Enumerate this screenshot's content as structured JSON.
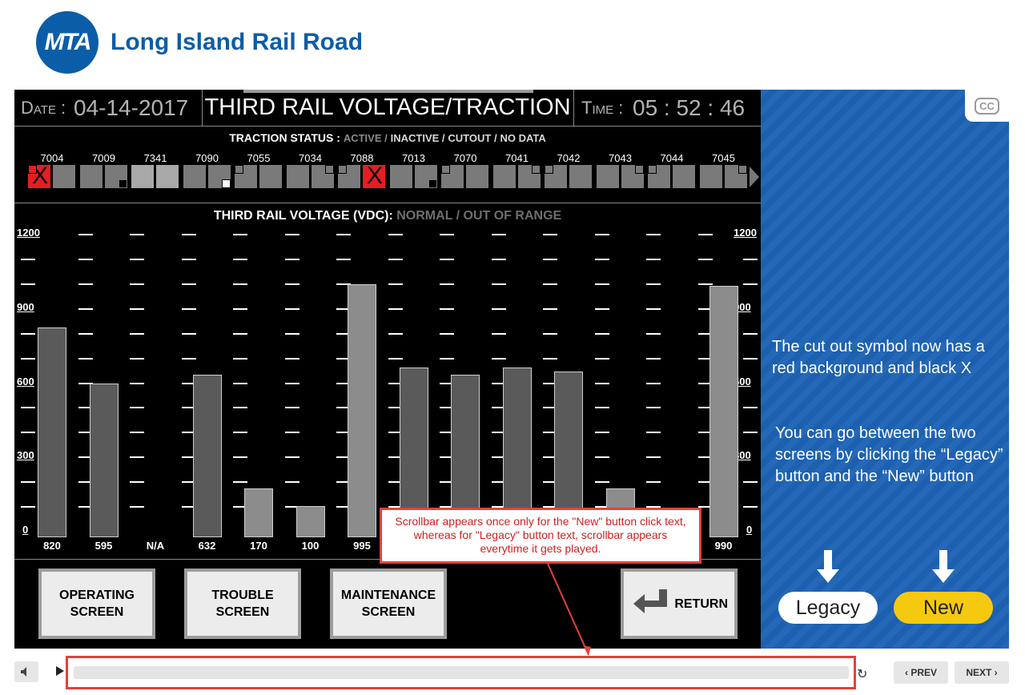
{
  "header": {
    "logo_text": "MTA",
    "brand": "Long Island Rail Road"
  },
  "screen": {
    "date_label": "Date :",
    "date": "04-14-2017",
    "title": "THIRD RAIL VOLTAGE/TRACTION",
    "time_label": "Time :",
    "time": "05 : 52 : 46",
    "traction_status": {
      "label": "TRACTION STATUS :",
      "active": "ACTIVE /",
      "inactive": "INACTIVE /",
      "cutout": "CUTOUT /",
      "no_data": "NO DATA"
    },
    "cars": [
      {
        "id": "7004",
        "cells": [
          {
            "color": "#e41f1f",
            "cutout": true,
            "mark": "tl"
          },
          {
            "color": "#7a7a7a",
            "mark": ""
          }
        ]
      },
      {
        "id": "7009",
        "cells": [
          {
            "color": "#7a7a7a",
            "mark": ""
          },
          {
            "color": "#7a7a7a",
            "mark": "br"
          }
        ]
      },
      {
        "id": "7341",
        "cells": [
          {
            "color": "#a8a8a8",
            "mark": ""
          },
          {
            "color": "#a8a8a8",
            "mark": ""
          }
        ]
      },
      {
        "id": "7090",
        "cells": [
          {
            "color": "#7a7a7a",
            "mark": ""
          },
          {
            "color": "#7a7a7a",
            "mark": "brw"
          }
        ]
      },
      {
        "id": "7055",
        "cells": [
          {
            "color": "#7a7a7a",
            "mark": "tl"
          },
          {
            "color": "#7a7a7a",
            "mark": ""
          }
        ]
      },
      {
        "id": "7034",
        "cells": [
          {
            "color": "#7a7a7a",
            "mark": ""
          },
          {
            "color": "#7a7a7a",
            "mark": "tr"
          }
        ]
      },
      {
        "id": "7088",
        "cells": [
          {
            "color": "#7a7a7a",
            "mark": "tl"
          },
          {
            "color": "#e41f1f",
            "cutout": true,
            "mark": ""
          }
        ]
      },
      {
        "id": "7013",
        "cells": [
          {
            "color": "#7a7a7a",
            "mark": ""
          },
          {
            "color": "#7a7a7a",
            "mark": "br"
          }
        ]
      },
      {
        "id": "7070",
        "cells": [
          {
            "color": "#7a7a7a",
            "mark": "tl"
          },
          {
            "color": "#7a7a7a",
            "mark": ""
          }
        ]
      },
      {
        "id": "7041",
        "cells": [
          {
            "color": "#7a7a7a",
            "mark": ""
          },
          {
            "color": "#7a7a7a",
            "mark": "tr"
          }
        ]
      },
      {
        "id": "7042",
        "cells": [
          {
            "color": "#7a7a7a",
            "mark": "tl"
          },
          {
            "color": "#7a7a7a",
            "mark": ""
          }
        ]
      },
      {
        "id": "7043",
        "cells": [
          {
            "color": "#7a7a7a",
            "mark": ""
          },
          {
            "color": "#7a7a7a",
            "mark": "tr"
          }
        ]
      },
      {
        "id": "7044",
        "cells": [
          {
            "color": "#7a7a7a",
            "mark": "tl"
          },
          {
            "color": "#7a7a7a",
            "mark": ""
          }
        ]
      },
      {
        "id": "7045",
        "cells": [
          {
            "color": "#7a7a7a",
            "mark": ""
          },
          {
            "color": "#7a7a7a",
            "mark": "tr"
          }
        ]
      }
    ],
    "voltage_title": {
      "label": "THIRD RAIL VOLTAGE (VDC):",
      "normal": "NORMAL /",
      "out_of_range": "OUT OF RANGE"
    },
    "buttons": {
      "operating": "OPERATING\nSCREEN",
      "trouble": "TROUBLE\nSCREEN",
      "maintenance": "MAINTENANCE\nSCREEN",
      "return": "RETURN"
    }
  },
  "chart_data": {
    "type": "bar",
    "ylim": [
      0,
      1200
    ],
    "yticks": [
      0,
      300,
      600,
      900,
      1200
    ],
    "categories": [
      "7004",
      "7009",
      "7341",
      "7090",
      "7055",
      "7034",
      "7088",
      "7013",
      "7070",
      "7041",
      "7042",
      "7043",
      "7044",
      "7045"
    ],
    "values": [
      820,
      595,
      null,
      632,
      170,
      100,
      995,
      660,
      632,
      660,
      645,
      170,
      null,
      990
    ],
    "labels": [
      "820",
      "595",
      "N/A",
      "632",
      "170",
      "100",
      "995",
      "",
      "",
      "",
      "",
      "",
      "",
      "990"
    ],
    "bar_colors": [
      "#5a5a5a",
      "#5a5a5a",
      null,
      "#5a5a5a",
      "#8c8c8c",
      "#8c8c8c",
      "#8c8c8c",
      "#5a5a5a",
      "#5a5a5a",
      "#5a5a5a",
      "#5a5a5a",
      "#8c8c8c",
      null,
      "#8c8c8c"
    ]
  },
  "side": {
    "cc_label": "CC",
    "note1": "The cut out symbol now has a red background and black X",
    "note2": "You can go between the two screens by clicking the “Legacy” button and the “New” button",
    "legacy": "Legacy",
    "new": "New"
  },
  "annotation": "Scrollbar appears once only for the \"New\" button click text, whereas for \"Legacy\" button text, scrollbar appears everytime it gets played.",
  "player": {
    "prev": "PREV",
    "next": "NEXT"
  }
}
